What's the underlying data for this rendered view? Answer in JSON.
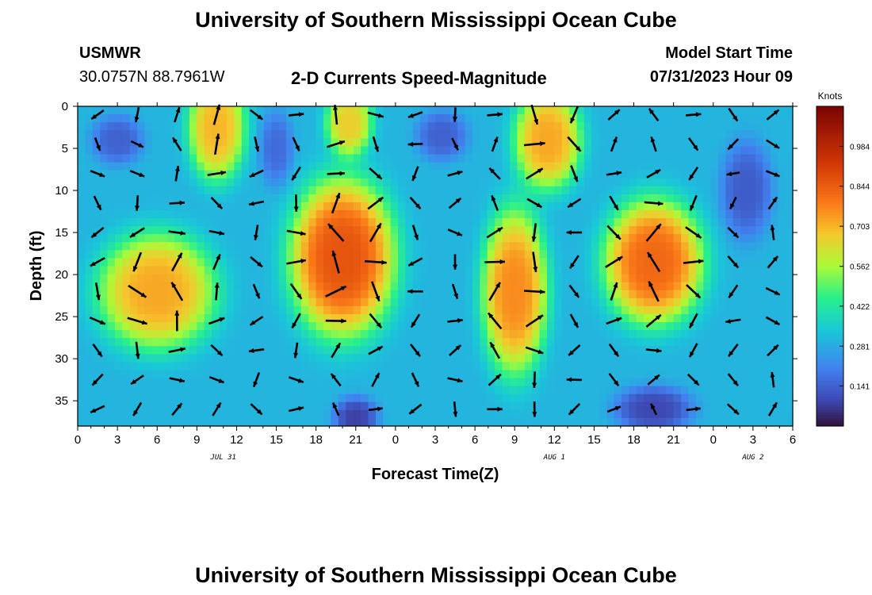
{
  "header": {
    "title": "University of Southern Mississippi Ocean Cube",
    "station": "USMWR",
    "coords": "30.0757N  88.7961W",
    "subtitle": "2-D Currents Speed-Magnitude",
    "model_start_label": "Model Start Time",
    "model_start_value": "07/31/2023 Hour 09"
  },
  "footer": {
    "title": "University of Southern Mississippi Ocean Cube"
  },
  "colorbar": {
    "unit": "Knots",
    "ticks": [
      "0.141",
      "0.281",
      "0.422",
      "0.562",
      "0.703",
      "0.844",
      "0.984"
    ],
    "min": 0.0,
    "max": 1.125
  },
  "chart_data": {
    "type": "heatmap",
    "title": "2-D Currents Speed-Magnitude",
    "xlabel": "Forecast Time(Z)",
    "ylabel": "Depth (ft)",
    "xlim": [
      0,
      54
    ],
    "ylim": [
      38,
      0
    ],
    "x_ticks": [
      "0",
      "3",
      "6",
      "9",
      "12",
      "15",
      "18",
      "21",
      "0",
      "3",
      "6",
      "9",
      "12",
      "15",
      "18",
      "21",
      "0",
      "3",
      "6"
    ],
    "y_ticks": [
      "0",
      "5",
      "10",
      "15",
      "20",
      "25",
      "30",
      "35"
    ],
    "date_labels": [
      {
        "label": "JUL 31",
        "hour": 11
      },
      {
        "label": "AUG 1",
        "hour": 36
      },
      {
        "label": "AUG 2",
        "hour": 51
      }
    ],
    "value_unit": "Knots",
    "high_speed_regions": [
      {
        "hour_center": 6.0,
        "depth_center": 22.0,
        "hour_radius": 4.5,
        "depth_radius": 7.0,
        "speed": 0.72
      },
      {
        "hour_center": 10.5,
        "depth_center": 2.5,
        "hour_radius": 2.2,
        "depth_radius": 6.5,
        "speed": 0.7
      },
      {
        "hour_center": 20.0,
        "depth_center": 18.0,
        "hour_radius": 4.0,
        "depth_radius": 9.5,
        "speed": 0.86
      },
      {
        "hour_center": 20.5,
        "depth_center": 2.0,
        "hour_radius": 1.8,
        "depth_radius": 4.0,
        "speed": 0.66
      },
      {
        "hour_center": 33.0,
        "depth_center": 22.0,
        "hour_radius": 2.5,
        "depth_radius": 10.0,
        "speed": 0.76
      },
      {
        "hour_center": 35.5,
        "depth_center": 4.0,
        "hour_radius": 2.6,
        "depth_radius": 6.0,
        "speed": 0.72
      },
      {
        "hour_center": 43.5,
        "depth_center": 18.5,
        "hour_radius": 3.8,
        "depth_radius": 7.5,
        "speed": 0.82
      }
    ],
    "low_speed_regions": [
      {
        "hour_center": 3.0,
        "depth_center": 4.0,
        "hour_radius": 2.0,
        "depth_radius": 3.0,
        "speed": 0.14
      },
      {
        "hour_center": 15.0,
        "depth_center": 5.0,
        "hour_radius": 1.3,
        "depth_radius": 4.5,
        "speed": 0.16
      },
      {
        "hour_center": 27.5,
        "depth_center": 3.5,
        "hour_radius": 2.0,
        "depth_radius": 3.0,
        "speed": 0.14
      },
      {
        "hour_center": 21.0,
        "depth_center": 37.0,
        "hour_radius": 1.7,
        "depth_radius": 2.5,
        "speed": 0.08
      },
      {
        "hour_center": 43.5,
        "depth_center": 36.0,
        "hour_radius": 3.0,
        "depth_radius": 2.8,
        "speed": 0.09
      },
      {
        "hour_center": 50.5,
        "depth_center": 10.0,
        "hour_radius": 2.0,
        "depth_radius": 6.0,
        "speed": 0.13
      }
    ],
    "background_speed": 0.3
  }
}
